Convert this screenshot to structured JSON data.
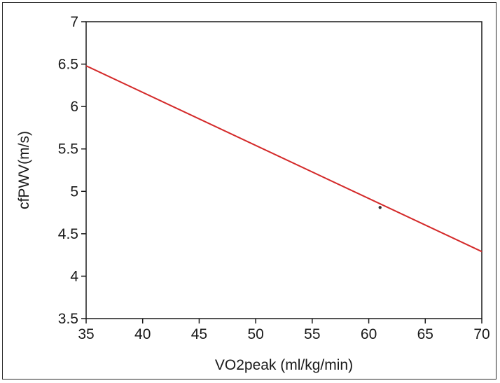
{
  "chart_data": {
    "type": "line",
    "title": "",
    "xlabel": "VO2peak (ml/kg/min)",
    "ylabel": "cfPWV(m/s)",
    "xlim": [
      35,
      70
    ],
    "ylim": [
      3.5,
      7
    ],
    "xticks": [
      "35",
      "40",
      "45",
      "50",
      "55",
      "60",
      "65",
      "70"
    ],
    "yticks": [
      "3.5",
      "4",
      "4.5",
      "5",
      "5.5",
      "6",
      "6.5",
      "7"
    ],
    "grid": false,
    "legend": "none",
    "series": [
      {
        "x": [
          35,
          70
        ],
        "y": [
          6.48,
          4.29
        ],
        "color": "#d42a2a"
      }
    ],
    "points": [
      {
        "x": 61,
        "y": 4.81
      }
    ]
  }
}
